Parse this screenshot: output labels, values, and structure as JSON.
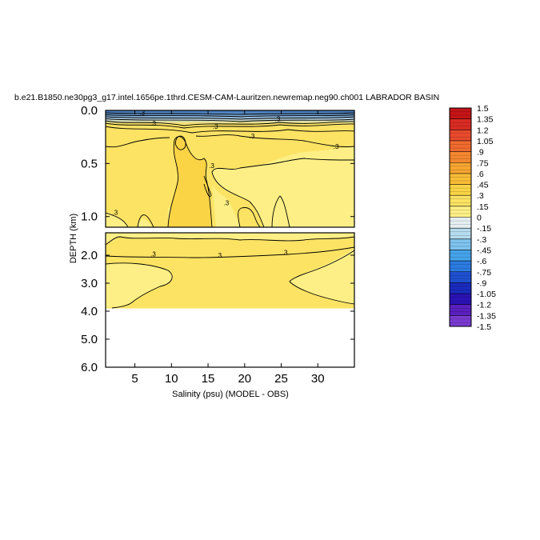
{
  "chart_data": {
    "type": "contour",
    "title": "b.e21.B1850.ne30pg3_g17.intel.1656pe.1thrd.CESM-CAM-Lauritzen.newremap.neg90.ch001 LABRADOR BASIN",
    "xlabel": "Salinity (psu) (MODEL - OBS)",
    "ylabel": "DEPTH (km)",
    "x_range": [
      1,
      35
    ],
    "x_ticks": [
      5,
      10,
      15,
      20,
      25,
      30
    ],
    "x_tick_labels": [
      "5",
      "10",
      "15",
      "20",
      "25",
      "30"
    ],
    "upper_panel": {
      "y_range": [
        0.0,
        1.1
      ],
      "y_ticks": [
        0.0,
        0.5,
        1.0
      ],
      "y_tick_labels": [
        "0.0",
        "0.5",
        "1.0"
      ]
    },
    "lower_panel": {
      "y_range": [
        1.2,
        6.0
      ],
      "y_ticks": [
        2.0,
        3.0,
        4.0,
        5.0,
        6.0
      ],
      "y_tick_labels": [
        "2.0",
        "3.0",
        "4.0",
        "5.0",
        "6.0"
      ],
      "data_bottom_depth": 3.9
    },
    "contour_labels": [
      {
        "x": 6.0,
        "depth": 0.02,
        "text": ".3"
      },
      {
        "x": 7.5,
        "depth": 0.12,
        "text": ".3"
      },
      {
        "x": 16.0,
        "depth": 0.15,
        "text": ".3"
      },
      {
        "x": 24.5,
        "depth": 0.08,
        "text": ".3"
      },
      {
        "x": 21.0,
        "depth": 0.24,
        "text": ".3"
      },
      {
        "x": 32.5,
        "depth": 0.34,
        "text": ".3"
      },
      {
        "x": 15.5,
        "depth": 0.52,
        "text": ".3"
      },
      {
        "x": 17.5,
        "depth": 0.87,
        "text": ".3"
      },
      {
        "x": 2.3,
        "depth": 0.96,
        "text": ".3"
      },
      {
        "x": 7.5,
        "depth": 1.95,
        "text": ".3"
      },
      {
        "x": 16.5,
        "depth": 2.0,
        "text": ".3"
      },
      {
        "x": 25.5,
        "depth": 1.9,
        "text": ".3"
      }
    ],
    "colorbar": {
      "labels": [
        "1.5",
        "1.35",
        "1.2",
        "1.05",
        ".9",
        ".75",
        ".6",
        ".45",
        ".3",
        ".15",
        "0",
        "-.15",
        "-.3",
        "-.45",
        "-.6",
        "-.75",
        "-.9",
        "-1.05",
        "-1.2",
        "-1.35",
        "-1.5"
      ],
      "colors_top_to_bottom": [
        "#c41416",
        "#d82b23",
        "#e84a2c",
        "#f06a2e",
        "#f4872f",
        "#f7a531",
        "#f9bd36",
        "#fbd445",
        "#fde363",
        "#fdef85",
        "#e5eef0",
        "#b4dbed",
        "#7ec3ee",
        "#45a3ea",
        "#2b7ae0",
        "#1e50cf",
        "#1a2bbd",
        "#2a12b4",
        "#5a1fbe",
        "#7a3ad0"
      ]
    },
    "fill_colors": {
      "level_015_03": "#fdef85",
      "level_03_045": "#fde363",
      "level_045_06": "#fbd445",
      "shallow_cold": "#5d8fc8"
    }
  }
}
